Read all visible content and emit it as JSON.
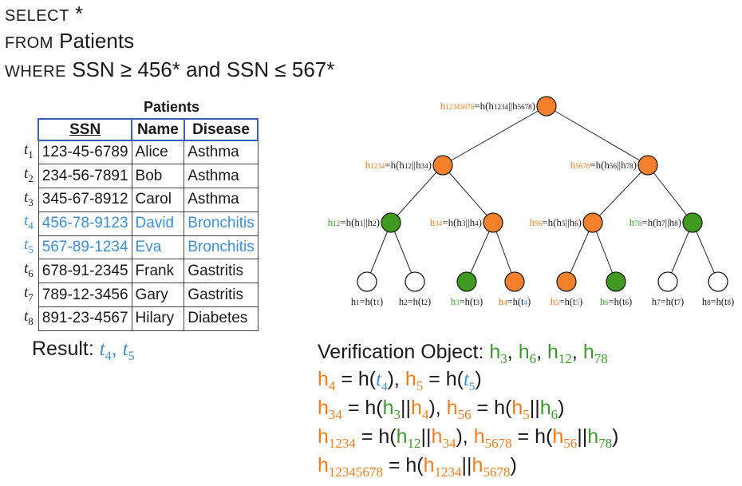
{
  "query": {
    "select_kw": "SELECT",
    "select_rest": "*",
    "from_kw": "FROM",
    "from_rest": "Patients",
    "where_kw": "WHERE",
    "where_rest": "SSN ≥ 456* and SSN ≤ 567*"
  },
  "table": {
    "caption": "Patients",
    "headers": [
      "SSN",
      "Name",
      "Disease"
    ],
    "rows": [
      {
        "label": "t",
        "sub": "1",
        "ssn": "123-45-6789",
        "name": "Alice",
        "disease": "Asthma",
        "highlight": false
      },
      {
        "label": "t",
        "sub": "2",
        "ssn": "234-56-7891",
        "name": "Bob",
        "disease": "Asthma",
        "highlight": false
      },
      {
        "label": "t",
        "sub": "3",
        "ssn": "345-67-8912",
        "name": "Carol",
        "disease": "Asthma",
        "highlight": false
      },
      {
        "label": "t",
        "sub": "4",
        "ssn": "456-78-9123",
        "name": "David",
        "disease": "Bronchitis",
        "highlight": true
      },
      {
        "label": "t",
        "sub": "5",
        "ssn": "567-89-1234",
        "name": "Eva",
        "disease": "Bronchitis",
        "highlight": true
      },
      {
        "label": "t",
        "sub": "6",
        "ssn": "678-91-2345",
        "name": "Frank",
        "disease": "Gastritis",
        "highlight": false
      },
      {
        "label": "t",
        "sub": "7",
        "ssn": "789-12-3456",
        "name": "Gary",
        "disease": "Gastritis",
        "highlight": false
      },
      {
        "label": "t",
        "sub": "8",
        "ssn": "891-23-4567",
        "name": "Hilary",
        "disease": "Diabetes",
        "highlight": false
      }
    ]
  },
  "colors": {
    "green": "#3a9a2a",
    "orange": "#ef7d1c",
    "blue": "#3d8fd8",
    "white": "#ffffff",
    "node_green": "#3f9a1f",
    "node_orange": "#f5802c"
  },
  "tree": {
    "root": {
      "id": "12345678",
      "label_pre": "=h(h",
      "label_a": "1234",
      "label_mid": "||h",
      "label_b": "5678",
      "label_post": ")",
      "color": "orange",
      "id_color": "orange"
    },
    "level1": [
      {
        "id": "1234",
        "label_pre": "=h(h",
        "label_a": "12",
        "label_mid": "||h",
        "label_b": "34",
        "label_post": ")",
        "color": "orange",
        "id_color": "orange"
      },
      {
        "id": "5678",
        "label_pre": "=h(h",
        "label_a": "56",
        "label_mid": "||h",
        "label_b": "78",
        "label_post": ")",
        "color": "orange",
        "id_color": "orange"
      }
    ],
    "level2": [
      {
        "id": "12",
        "label_pre": "=h(h",
        "label_a": "1",
        "label_mid": "||h",
        "label_b": "2",
        "label_post": ")",
        "color": "green",
        "id_color": "green"
      },
      {
        "id": "34",
        "label_pre": "=h(h",
        "label_a": "3",
        "label_mid": "||h",
        "label_b": "4",
        "label_post": ")",
        "color": "orange",
        "id_color": "orange"
      },
      {
        "id": "56",
        "label_pre": "=h(h",
        "label_a": "5",
        "label_mid": "||h",
        "label_b": "6",
        "label_post": ")",
        "color": "orange",
        "id_color": "orange"
      },
      {
        "id": "78",
        "label_pre": "=h(h",
        "label_a": "7",
        "label_mid": "||h",
        "label_b": "8",
        "label_post": ")",
        "color": "green",
        "id_color": "green"
      }
    ],
    "leaves": [
      {
        "h": "h",
        "sub": "1",
        "eq": "=h(t",
        "tsub": "1",
        "close": ")",
        "color": "white",
        "h_color": "",
        "t_color": ""
      },
      {
        "h": "h",
        "sub": "2",
        "eq": "=h(t",
        "tsub": "2",
        "close": ")",
        "color": "white",
        "h_color": "",
        "t_color": ""
      },
      {
        "h": "h",
        "sub": "3",
        "eq": "=h(t",
        "tsub": "3",
        "close": ")",
        "color": "green",
        "h_color": "green",
        "t_color": ""
      },
      {
        "h": "h",
        "sub": "4",
        "eq": "=h(t",
        "tsub": "4",
        "close": ")",
        "color": "orange",
        "h_color": "orange",
        "t_color": "blue"
      },
      {
        "h": "h",
        "sub": "5",
        "eq": "=h(t",
        "tsub": "5",
        "close": ")",
        "color": "orange",
        "h_color": "orange",
        "t_color": "blue"
      },
      {
        "h": "h",
        "sub": "6",
        "eq": "=h(t",
        "tsub": "6",
        "close": ")",
        "color": "green",
        "h_color": "green",
        "t_color": ""
      },
      {
        "h": "h",
        "sub": "7",
        "eq": "=h(t",
        "tsub": "7",
        "close": ")",
        "color": "white",
        "h_color": "",
        "t_color": ""
      },
      {
        "h": "h",
        "sub": "8",
        "eq": "=h(t",
        "tsub": "8",
        "close": ")",
        "color": "white",
        "h_color": "",
        "t_color": ""
      }
    ]
  },
  "result": {
    "label": "Result:",
    "t4": "t",
    "t4_sub": "4",
    "sep": ", ",
    "t5": "t",
    "t5_sub": "5"
  },
  "vo": {
    "label": "Verification Object:",
    "h": "h",
    "comma": ", ",
    "eq": " = h(",
    "cat": "||",
    "close": ")",
    "t": "t",
    "items": [
      "3",
      "6",
      "12",
      "78"
    ],
    "line2": [
      "4",
      "5"
    ],
    "line3": [
      [
        "34",
        "3",
        "4"
      ],
      [
        "56",
        "5",
        "6"
      ]
    ],
    "line4": [
      [
        "1234",
        "12",
        "34"
      ],
      [
        "5678",
        "56",
        "78"
      ]
    ],
    "line5": [
      "12345678",
      "1234",
      "5678"
    ]
  }
}
